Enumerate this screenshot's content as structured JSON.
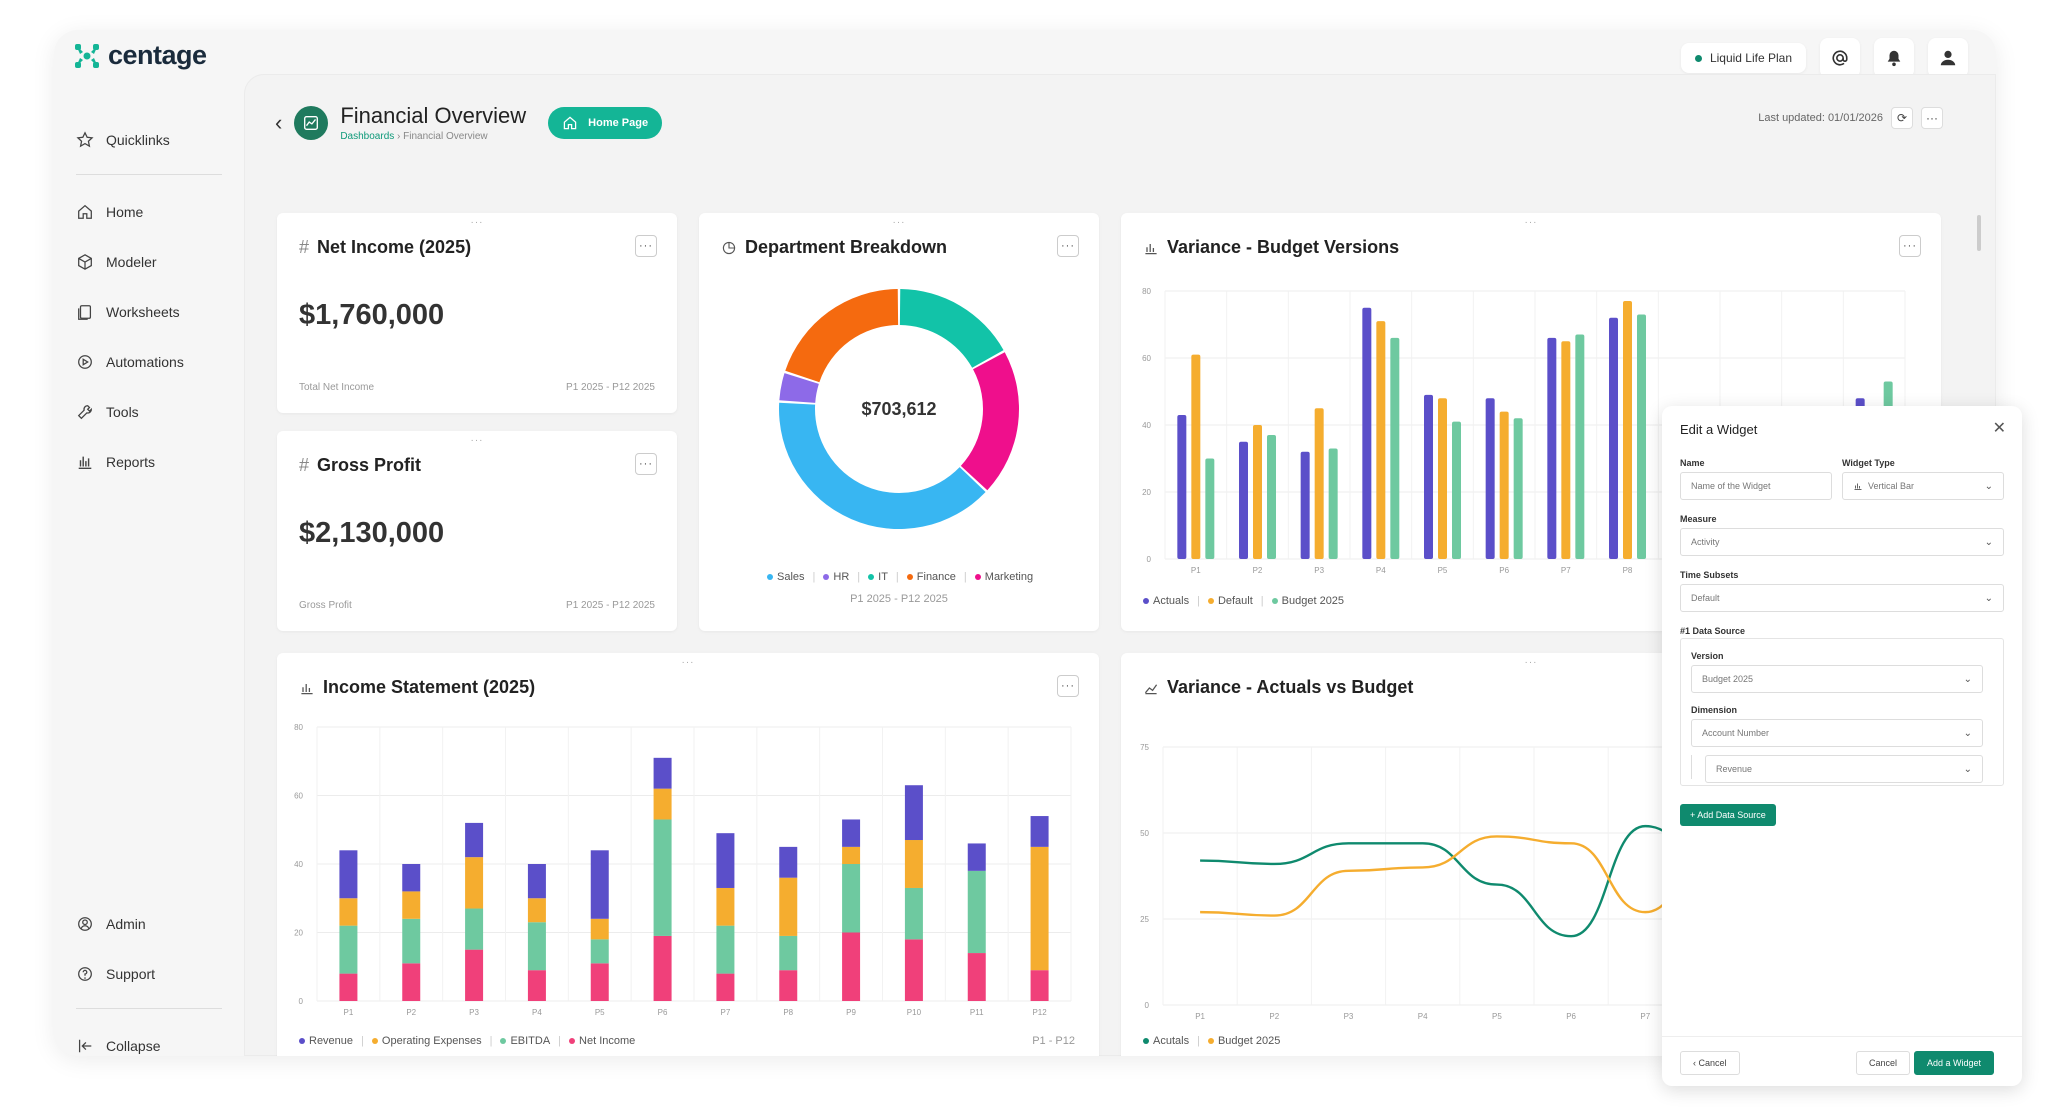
{
  "app": {
    "logo_text": "centage"
  },
  "topbar": {
    "plan_label": "Liquid Life Plan"
  },
  "sidebar": {
    "quicklinks": "Quicklinks",
    "items": [
      "Home",
      "Modeler",
      "Worksheets",
      "Automations",
      "Tools",
      "Reports"
    ],
    "admin": "Admin",
    "support": "Support",
    "collapse": "Collapse"
  },
  "header": {
    "title": "Financial Overview",
    "breadcrumb_root": "Dashboards",
    "breadcrumb_sep": "›",
    "breadcrumb_current": "Financial Overview",
    "home_button": "Home Page",
    "last_updated": "Last updated: 01/01/2026",
    "back_glyph": "‹",
    "more_glyph": "···",
    "refresh_glyph": "⟳"
  },
  "net_income": {
    "title": "Net Income (2025)",
    "value": "$1,760,000",
    "label": "Total Net Income",
    "range": "P1 2025 - P12 2025"
  },
  "gross_profit": {
    "title": "Gross Profit",
    "value": "$2,130,000",
    "label": "Gross Profit",
    "range": "P1 2025 - P12 2025"
  },
  "department": {
    "title": "Department Breakdown",
    "center_value": "$703,612",
    "range": "P1 2025 - P12 2025"
  },
  "variance_budget": {
    "title": "Variance - Budget Versions"
  },
  "income_statement": {
    "title": "Income Statement (2025)",
    "range": "P1 - P12"
  },
  "variance_actuals": {
    "title": "Variance - Actuals vs Budget"
  },
  "colors": {
    "actuals": "#5b4fc9",
    "default": "#f5ad2f",
    "budget": "#6ec9a0",
    "revenue": "#5b4fc9",
    "opex": "#f5ad2f",
    "ebitda": "#6ec9a0",
    "net": "#f0407a",
    "teal": "#0f8a6e"
  },
  "chart_data": [
    {
      "type": "pie",
      "title": "Department Breakdown",
      "categories": [
        "Sales",
        "HR",
        "IT",
        "Finance",
        "Marketing"
      ],
      "values": [
        39,
        4,
        17,
        20,
        20
      ],
      "colors": [
        "#38b6f2",
        "#8d6ae8",
        "#12c3a8",
        "#f56a0f",
        "#ef0f8c"
      ]
    },
    {
      "type": "bar",
      "title": "Variance - Budget Versions",
      "categories": [
        "P1",
        "P2",
        "P3",
        "P4",
        "P5",
        "P6",
        "P7",
        "P8",
        "P9",
        "P10",
        "P11",
        "P12"
      ],
      "series": [
        {
          "name": "Actuals",
          "values": [
            43,
            35,
            32,
            75,
            49,
            48,
            66,
            72,
            4,
            15,
            26,
            48
          ]
        },
        {
          "name": "Default",
          "values": [
            61,
            40,
            45,
            71,
            48,
            44,
            65,
            77,
            9,
            21,
            31,
            42
          ]
        },
        {
          "name": "Budget 2025",
          "values": [
            30,
            37,
            33,
            66,
            41,
            42,
            67,
            73,
            18,
            26,
            45,
            53
          ]
        }
      ],
      "ylim": [
        0,
        80
      ],
      "yticks": [
        0,
        20,
        40,
        60,
        80
      ]
    },
    {
      "type": "bar",
      "stacked": true,
      "title": "Income Statement (2025)",
      "categories": [
        "P1",
        "P2",
        "P3",
        "P4",
        "P5",
        "P6",
        "P7",
        "P8",
        "P9",
        "P10",
        "P11",
        "P12"
      ],
      "series": [
        {
          "name": "Net Income",
          "values": [
            8,
            11,
            15,
            9,
            11,
            19,
            8,
            9,
            20,
            18,
            14,
            9
          ]
        },
        {
          "name": "EBITDA",
          "values": [
            14,
            13,
            12,
            14,
            7,
            34,
            14,
            10,
            20,
            15,
            24,
            0
          ]
        },
        {
          "name": "Operating Expenses",
          "values": [
            8,
            8,
            15,
            7,
            6,
            9,
            11,
            17,
            5,
            14,
            0,
            36
          ]
        },
        {
          "name": "Revenue",
          "values": [
            14,
            8,
            10,
            10,
            20,
            9,
            16,
            9,
            8,
            16,
            8,
            9
          ]
        }
      ],
      "ylim": [
        0,
        80
      ],
      "yticks": [
        0,
        20,
        40,
        60,
        80
      ]
    },
    {
      "type": "line",
      "title": "Variance - Actuals vs Budget",
      "categories": [
        "P1",
        "P2",
        "P3",
        "P4",
        "P5",
        "P6",
        "P7",
        "P8"
      ],
      "series": [
        {
          "name": "Acutals",
          "values": [
            42,
            41,
            47,
            47,
            35,
            20,
            52,
            38
          ]
        },
        {
          "name": "Budget 2025",
          "values": [
            27,
            26,
            39,
            40,
            49,
            47,
            27,
            49
          ]
        }
      ],
      "ylim": [
        0,
        75
      ],
      "yticks": [
        0,
        25,
        50,
        75
      ]
    }
  ],
  "edit_widget": {
    "title": "Edit a Widget",
    "close_glyph": "✕",
    "name_label": "Name",
    "name_placeholder": "Name of the Widget",
    "type_label": "Widget Type",
    "type_value": "Vertical Bar",
    "measure_label": "Measure",
    "measure_value": "Activity",
    "time_label": "Time Subsets",
    "time_value": "Default",
    "ds_label": "#1 Data Source",
    "version_label": "Version",
    "version_value": "Budget 2025",
    "dimension_label": "Dimension",
    "dimension_value": "Account Number",
    "dimension_sub_value": "Revenue",
    "add_ds": "+ Add Data Source",
    "back": "‹  Cancel",
    "cancel": "Cancel",
    "submit": "Add a Widget"
  }
}
